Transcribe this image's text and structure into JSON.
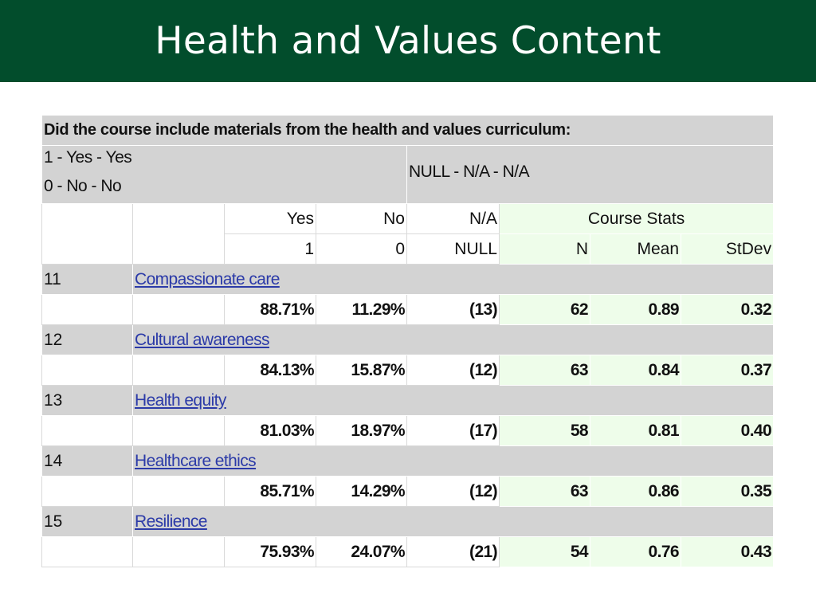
{
  "slide": {
    "title": "Health and Values Content"
  },
  "table": {
    "question": "Did the course include materials from the health and values curriculum:",
    "legend": {
      "yes": "1 - Yes - Yes",
      "no": "0 - No - No",
      "null": "NULL - N/A - N/A"
    },
    "headers": {
      "yes": "Yes",
      "yes_code": "1",
      "no": "No",
      "no_code": "0",
      "na": "N/A",
      "na_code": "NULL",
      "course_stats": "Course Stats",
      "n": "N",
      "mean": "Mean",
      "stdev": "StDev"
    },
    "rows": [
      {
        "id": "11",
        "label": "Compassionate care",
        "yes": "88.71%",
        "no": "11.29%",
        "na": "(13)",
        "n": "62",
        "mean": "0.89",
        "stdev": "0.32"
      },
      {
        "id": "12",
        "label": "Cultural awareness",
        "yes": "84.13%",
        "no": "15.87%",
        "na": "(12)",
        "n": "63",
        "mean": "0.84",
        "stdev": "0.37"
      },
      {
        "id": "13",
        "label": "Health equity",
        "yes": "81.03%",
        "no": "18.97%",
        "na": "(17)",
        "n": "58",
        "mean": "0.81",
        "stdev": "0.40"
      },
      {
        "id": "14",
        "label": "Healthcare ethics",
        "yes": "85.71%",
        "no": "14.29%",
        "na": "(12)",
        "n": "63",
        "mean": "0.86",
        "stdev": "0.35"
      },
      {
        "id": "15",
        "label": "Resilience",
        "yes": "75.93%",
        "no": "24.07%",
        "na": "(21)",
        "n": "54",
        "mean": "0.76",
        "stdev": "0.43"
      }
    ]
  },
  "colors": {
    "title_bar": "#024d2c",
    "header_grey": "#d3d3d3",
    "stats_green": "#eefdea",
    "link": "#2b3aa8"
  }
}
